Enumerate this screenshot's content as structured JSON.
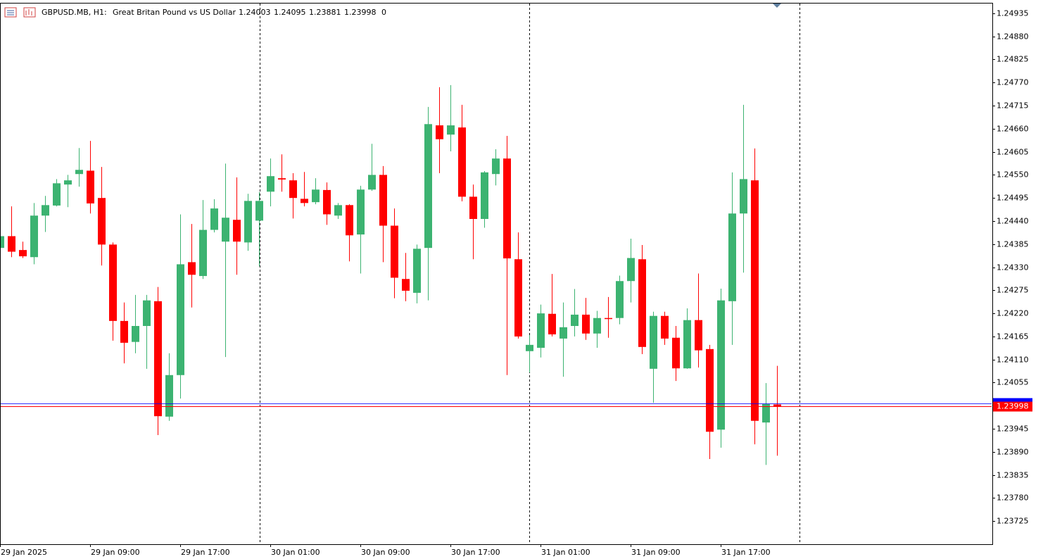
{
  "chart_data": {
    "type": "candlestick",
    "symbol": "GBPUSD.MB, H1:",
    "title": "Great Britan Pound vs US Dollar",
    "spread": 0,
    "up_color": "#3cb371",
    "down_color": "#ff0000",
    "bid": 1.23998,
    "bid_color": "#ff0000",
    "ask": 1.24005,
    "ask_color": "#0000ff",
    "categories": [
      "29 Jan 2025",
      null,
      null,
      null,
      null,
      null,
      null,
      null,
      "29 Jan 09:00",
      null,
      null,
      null,
      null,
      null,
      null,
      null,
      "29 Jan 17:00",
      null,
      null,
      null,
      null,
      null,
      null,
      null,
      "30 Jan 01:00",
      null,
      null,
      null,
      null,
      null,
      null,
      null,
      "30 Jan 09:00",
      null,
      null,
      null,
      null,
      null,
      null,
      null,
      "30 Jan 17:00",
      null,
      null,
      null,
      null,
      null,
      null,
      null,
      "31 Jan 01:00",
      null,
      null,
      null,
      null,
      null,
      null,
      null,
      "31 Jan 09:00",
      null,
      null,
      null,
      null,
      null,
      null,
      null,
      "31 Jan 17:00",
      null,
      null,
      null,
      null,
      null
    ],
    "open": [
      1.24376,
      1.24404,
      1.24371,
      1.24354,
      1.24453,
      1.24477,
      1.24527,
      1.24552,
      1.2456,
      1.24495,
      1.24384,
      1.24202,
      1.24152,
      1.2419,
      1.24249,
      1.23974,
      1.24073,
      1.24342,
      1.24309,
      1.24419,
      1.24391,
      1.24443,
      1.24389,
      1.24441,
      1.2451,
      1.24542,
      1.24537,
      1.24493,
      1.24485,
      1.24514,
      1.24453,
      1.24478,
      1.24408,
      1.24515,
      1.2455,
      1.24429,
      1.24302,
      1.24269,
      1.24376,
      1.24668,
      1.24646,
      1.24663,
      1.24498,
      1.24445,
      1.24552,
      1.24589,
      1.24349,
      1.2413,
      1.24138,
      1.24219,
      1.2416,
      1.2419,
      1.24217,
      1.24172,
      1.24209,
      1.24209,
      1.24297,
      1.24349,
      1.24088,
      1.24214,
      1.24162,
      1.24089,
      1.24204,
      1.24135,
      1.23943,
      1.24249,
      1.24458,
      1.24537,
      1.2396,
      1.24003
    ],
    "high": [
      1.24413,
      1.24475,
      1.24391,
      1.24483,
      1.245,
      1.2454,
      1.2455,
      1.24614,
      1.24631,
      1.24569,
      1.24389,
      1.24246,
      1.24264,
      1.24264,
      1.24283,
      1.24125,
      1.24456,
      1.24433,
      1.2449,
      1.24492,
      1.24577,
      1.24544,
      1.24505,
      1.24509,
      1.24589,
      1.24599,
      1.24554,
      1.24557,
      1.24542,
      1.24532,
      1.24483,
      1.2448,
      1.24524,
      1.24624,
      1.24571,
      1.2447,
      1.24364,
      1.24384,
      1.24712,
      1.24759,
      1.24764,
      1.24717,
      1.24527,
      1.24559,
      1.24611,
      1.24643,
      1.24413,
      1.24168,
      1.24241,
      1.24314,
      1.24246,
      1.24278,
      1.24257,
      1.24226,
      1.24259,
      1.2431,
      1.24398,
      1.24383,
      1.24224,
      1.24224,
      1.2419,
      1.24232,
      1.24315,
      1.24145,
      1.24279,
      1.24556,
      1.24717,
      1.24613,
      1.24054,
      1.24095
    ],
    "low": [
      1.24369,
      1.24354,
      1.24352,
      1.24337,
      1.24414,
      1.24475,
      1.24473,
      1.24522,
      1.24458,
      1.24334,
      1.24155,
      1.24101,
      1.24125,
      1.24088,
      1.2393,
      1.23964,
      1.24017,
      1.24234,
      1.24302,
      1.24413,
      1.24116,
      1.24312,
      1.24369,
      1.24332,
      1.24475,
      1.2451,
      1.24446,
      1.24475,
      1.2448,
      1.24431,
      1.24445,
      1.24344,
      1.24315,
      1.24512,
      1.24342,
      1.24256,
      1.24249,
      1.24244,
      1.24251,
      1.24554,
      1.24606,
      1.24487,
      1.24349,
      1.24424,
      1.24525,
      1.24073,
      1.2416,
      1.24079,
      1.24115,
      1.24165,
      1.24069,
      1.24165,
      1.24157,
      1.24138,
      1.24162,
      1.24194,
      1.24246,
      1.24123,
      1.24007,
      1.24145,
      1.24059,
      1.24088,
      1.24091,
      1.23873,
      1.239,
      1.24145,
      1.24317,
      1.23908,
      1.23859,
      1.23881
    ],
    "close": [
      1.24404,
      1.24367,
      1.24356,
      1.24453,
      1.24478,
      1.2453,
      1.24537,
      1.24562,
      1.24482,
      1.24384,
      1.24202,
      1.2415,
      1.2419,
      1.24251,
      1.23975,
      1.24073,
      1.24337,
      1.24312,
      1.24419,
      1.2447,
      1.24448,
      1.24391,
      1.24488,
      1.24488,
      1.24547,
      1.24539,
      1.24495,
      1.24483,
      1.24515,
      1.24456,
      1.24478,
      1.24406,
      1.24515,
      1.2455,
      1.24429,
      1.24305,
      1.24274,
      1.24374,
      1.24671,
      1.24635,
      1.24668,
      1.24498,
      1.24445,
      1.24556,
      1.24589,
      1.24351,
      1.24165,
      1.24145,
      1.2422,
      1.2417,
      1.24187,
      1.24217,
      1.24172,
      1.24209,
      1.24207,
      1.24297,
      1.24352,
      1.2414,
      1.24214,
      1.2416,
      1.24089,
      1.24204,
      1.24132,
      1.23938,
      1.24251,
      1.24458,
      1.2454,
      1.23964,
      1.24004,
      1.23998
    ],
    "ylim": [
      1.2367,
      1.2496
    ],
    "yticks": [
      1.24935,
      {
        "value": 1.2488,
        "label": "1.24880"
      },
      1.24825,
      {
        "value": 1.2477,
        "label": "1.24770"
      },
      1.24715,
      {
        "value": 1.2466,
        "label": "1.24660"
      },
      1.24605,
      {
        "value": 1.2455,
        "label": "1.24550"
      },
      1.24495,
      {
        "value": 1.2444,
        "label": "1.24440"
      },
      1.24385,
      {
        "value": 1.2433,
        "label": "1.24330"
      },
      1.24275,
      {
        "value": 1.2422,
        "label": "1.24220"
      },
      1.24165,
      {
        "value": 1.2411,
        "label": "1.24110"
      },
      1.24055,
      1.23945,
      {
        "value": 1.2389,
        "label": "1.23890"
      },
      1.23835,
      {
        "value": 1.2378,
        "label": "1.23780"
      },
      1.23725
    ]
  }
}
